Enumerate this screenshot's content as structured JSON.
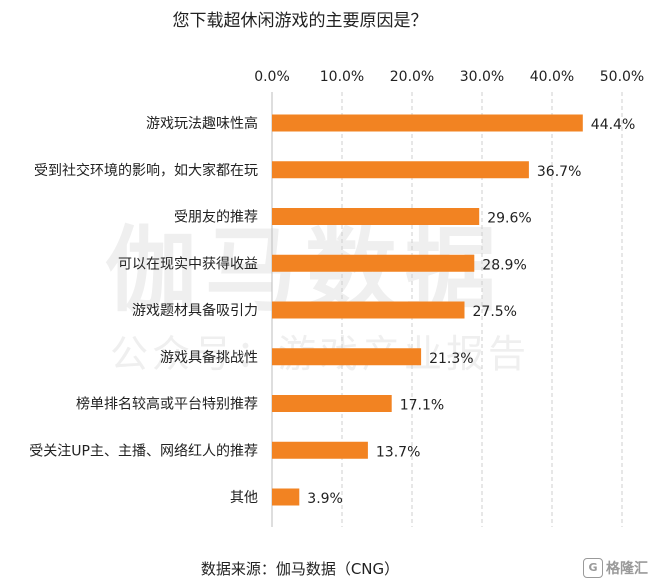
{
  "chart_data": {
    "type": "bar",
    "orientation": "horizontal",
    "title": "您下载超休闲游戏的主要原因是？",
    "categories": [
      "游戏玩法趣味性高",
      "受到社交环境的影响，如大家都在玩",
      "受朋友的推荐",
      "可以在现实中获得收益",
      "游戏题材具备吸引力",
      "游戏具备挑战性",
      "榜单排名较高或平台特别推荐",
      "受关注UP主、主播、网络红人的推荐",
      "其他"
    ],
    "values": [
      44.4,
      36.7,
      29.6,
      28.9,
      27.5,
      21.3,
      17.1,
      13.7,
      3.9
    ],
    "value_labels": [
      "44.4%",
      "36.7%",
      "29.6%",
      "28.9%",
      "27.5%",
      "21.3%",
      "17.1%",
      "13.7%",
      "3.9%"
    ],
    "xlim": [
      0,
      50
    ],
    "x_ticks": [
      "0.0%",
      "10.0%",
      "20.0%",
      "30.0%",
      "40.0%",
      "50.0%"
    ],
    "x_axis_position": "top",
    "grid": "vertical dashed",
    "bar_color": "#f28322"
  },
  "watermark": {
    "main": "伽马数据",
    "sub": "公众号：游戏产业报告"
  },
  "source_note": "数据来源：伽马数据（CNG）",
  "brand": {
    "logo_text": "G",
    "name": "格隆汇"
  }
}
